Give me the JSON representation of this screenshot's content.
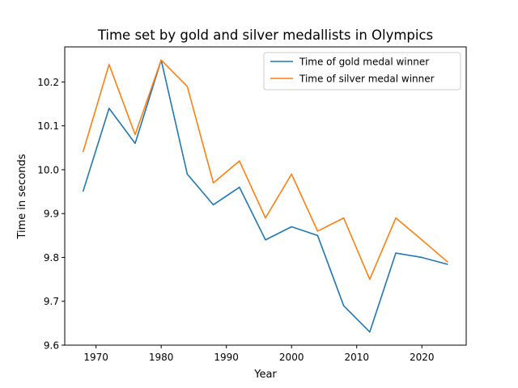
{
  "chart_data": {
    "type": "line",
    "title": "Time set by gold and silver medallists in Olympics",
    "xlabel": "Year",
    "ylabel": "Time in seconds",
    "xlim": [
      1965.2,
      2026.8
    ],
    "ylim": [
      9.6,
      10.28
    ],
    "xticks": [
      1970,
      1980,
      1990,
      2000,
      2010,
      2020
    ],
    "xtick_labels": [
      "1970",
      "1980",
      "1990",
      "2000",
      "2010",
      "2020"
    ],
    "yticks": [
      9.6,
      9.7,
      9.8,
      9.9,
      10.0,
      10.1,
      10.2
    ],
    "ytick_labels": [
      "9.6",
      "9.7",
      "9.8",
      "9.9",
      "10.0",
      "10.1",
      "10.2"
    ],
    "grid": false,
    "legend_position": "top-right",
    "x": [
      1968,
      1972,
      1976,
      1980,
      1984,
      1988,
      1992,
      1996,
      2000,
      2004,
      2008,
      2012,
      2016,
      2020,
      2024
    ],
    "series": [
      {
        "name": "Time of gold medal winner",
        "color": "#1f77b4",
        "values": [
          9.95,
          10.14,
          10.06,
          10.25,
          9.99,
          9.92,
          9.96,
          9.84,
          9.87,
          9.85,
          9.69,
          9.63,
          9.81,
          9.8,
          9.784
        ]
      },
      {
        "name": "Time of silver medal winner",
        "color": "#ff7f0e",
        "values": [
          10.04,
          10.24,
          10.08,
          10.25,
          10.19,
          9.97,
          10.02,
          9.89,
          9.99,
          9.86,
          9.89,
          9.75,
          9.89,
          9.84,
          9.789
        ]
      }
    ]
  }
}
